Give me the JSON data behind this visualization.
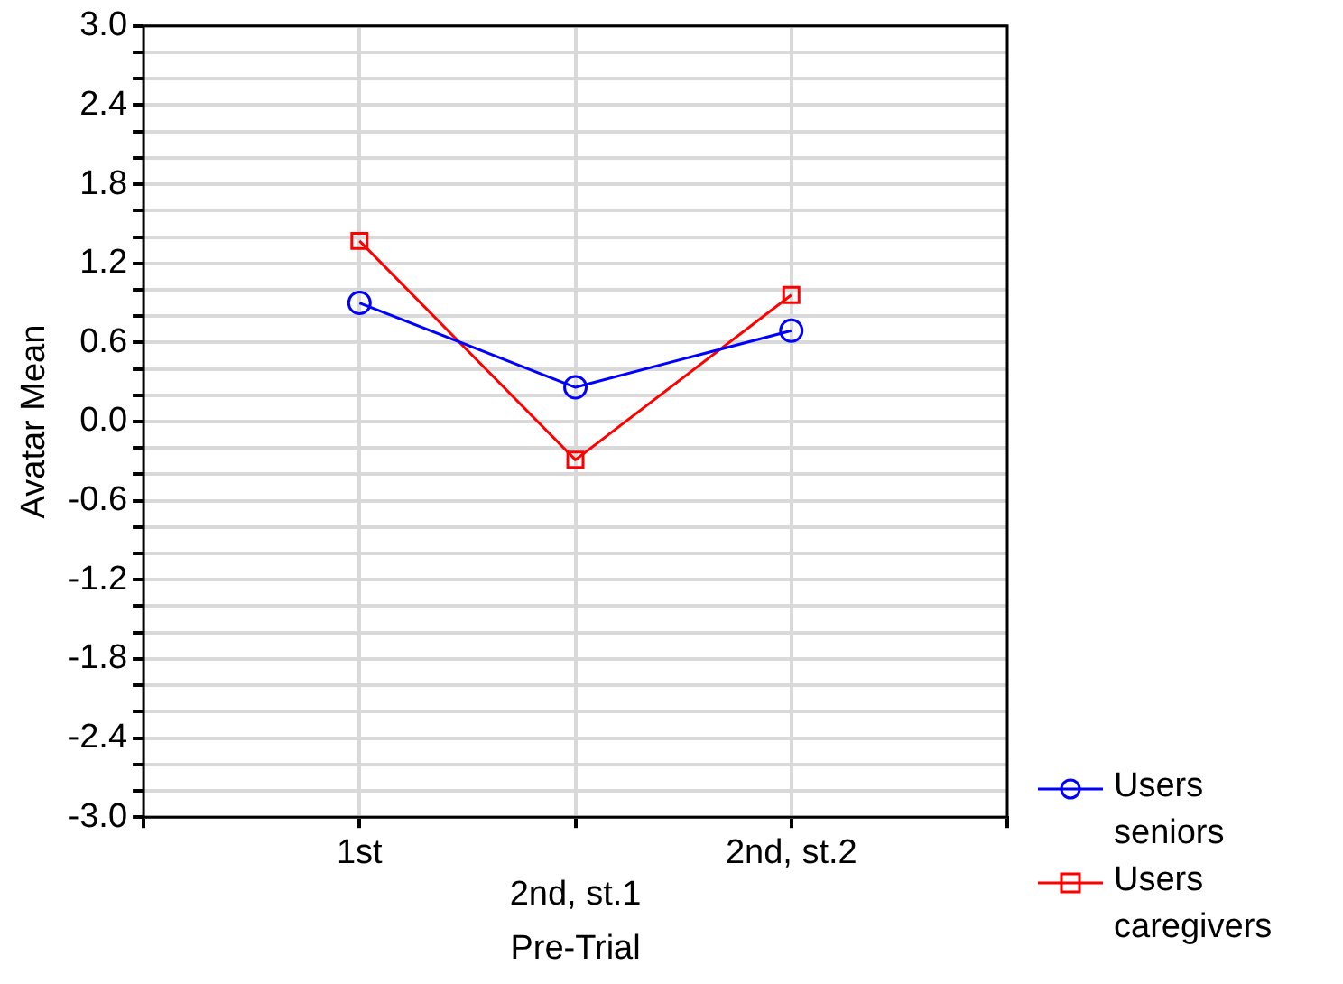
{
  "chart_data": {
    "type": "line",
    "xlabel": "Pre-Trial",
    "ylabel": "Avatar Mean",
    "categories": [
      "1st",
      "2nd, st.1",
      "2nd, st.2"
    ],
    "series": [
      {
        "name": "Users seniors",
        "color": "#0000ff",
        "marker": "circle",
        "values": [
          0.9,
          0.26,
          0.69
        ]
      },
      {
        "name": "Users caregivers",
        "color": "#ff0000",
        "marker": "square",
        "values": [
          1.37,
          -0.29,
          0.96
        ]
      }
    ],
    "ylim": [
      -3,
      3
    ],
    "yticks": [
      {
        "value": -3,
        "label": "-3.0"
      },
      {
        "value": -2.8,
        "label": null
      },
      {
        "value": -2.6,
        "label": null
      },
      {
        "value": -2.4,
        "label": "-2.4"
      },
      {
        "value": -2.2,
        "label": null
      },
      {
        "value": -2,
        "label": null
      },
      {
        "value": -1.8,
        "label": "-1.8"
      },
      {
        "value": -1.6,
        "label": null
      },
      {
        "value": -1.4,
        "label": null
      },
      {
        "value": -1.2,
        "label": "-1.2"
      },
      {
        "value": -1,
        "label": null
      },
      {
        "value": -0.8,
        "label": null
      },
      {
        "value": -0.6,
        "label": "-0.6"
      },
      {
        "value": -0.4,
        "label": null
      },
      {
        "value": -0.2,
        "label": null
      },
      {
        "value": 0,
        "label": "0.0"
      },
      {
        "value": 0.2,
        "label": null
      },
      {
        "value": 0.4,
        "label": null
      },
      {
        "value": 0.6,
        "label": "0.6"
      },
      {
        "value": 0.8,
        "label": null
      },
      {
        "value": 1,
        "label": null
      },
      {
        "value": 1.2,
        "label": "1.2"
      },
      {
        "value": 1.4,
        "label": null
      },
      {
        "value": 1.6,
        "label": null
      },
      {
        "value": 1.8,
        "label": "1.8"
      },
      {
        "value": 2,
        "label": null
      },
      {
        "value": 2.2,
        "label": null
      },
      {
        "value": 2.4,
        "label": "2.4"
      },
      {
        "value": 2.6,
        "label": null
      },
      {
        "value": 2.8,
        "label": null
      },
      {
        "value": 3,
        "label": "3.0"
      }
    ],
    "grid": true,
    "legend": "bottom right",
    "line_style": "solid"
  }
}
